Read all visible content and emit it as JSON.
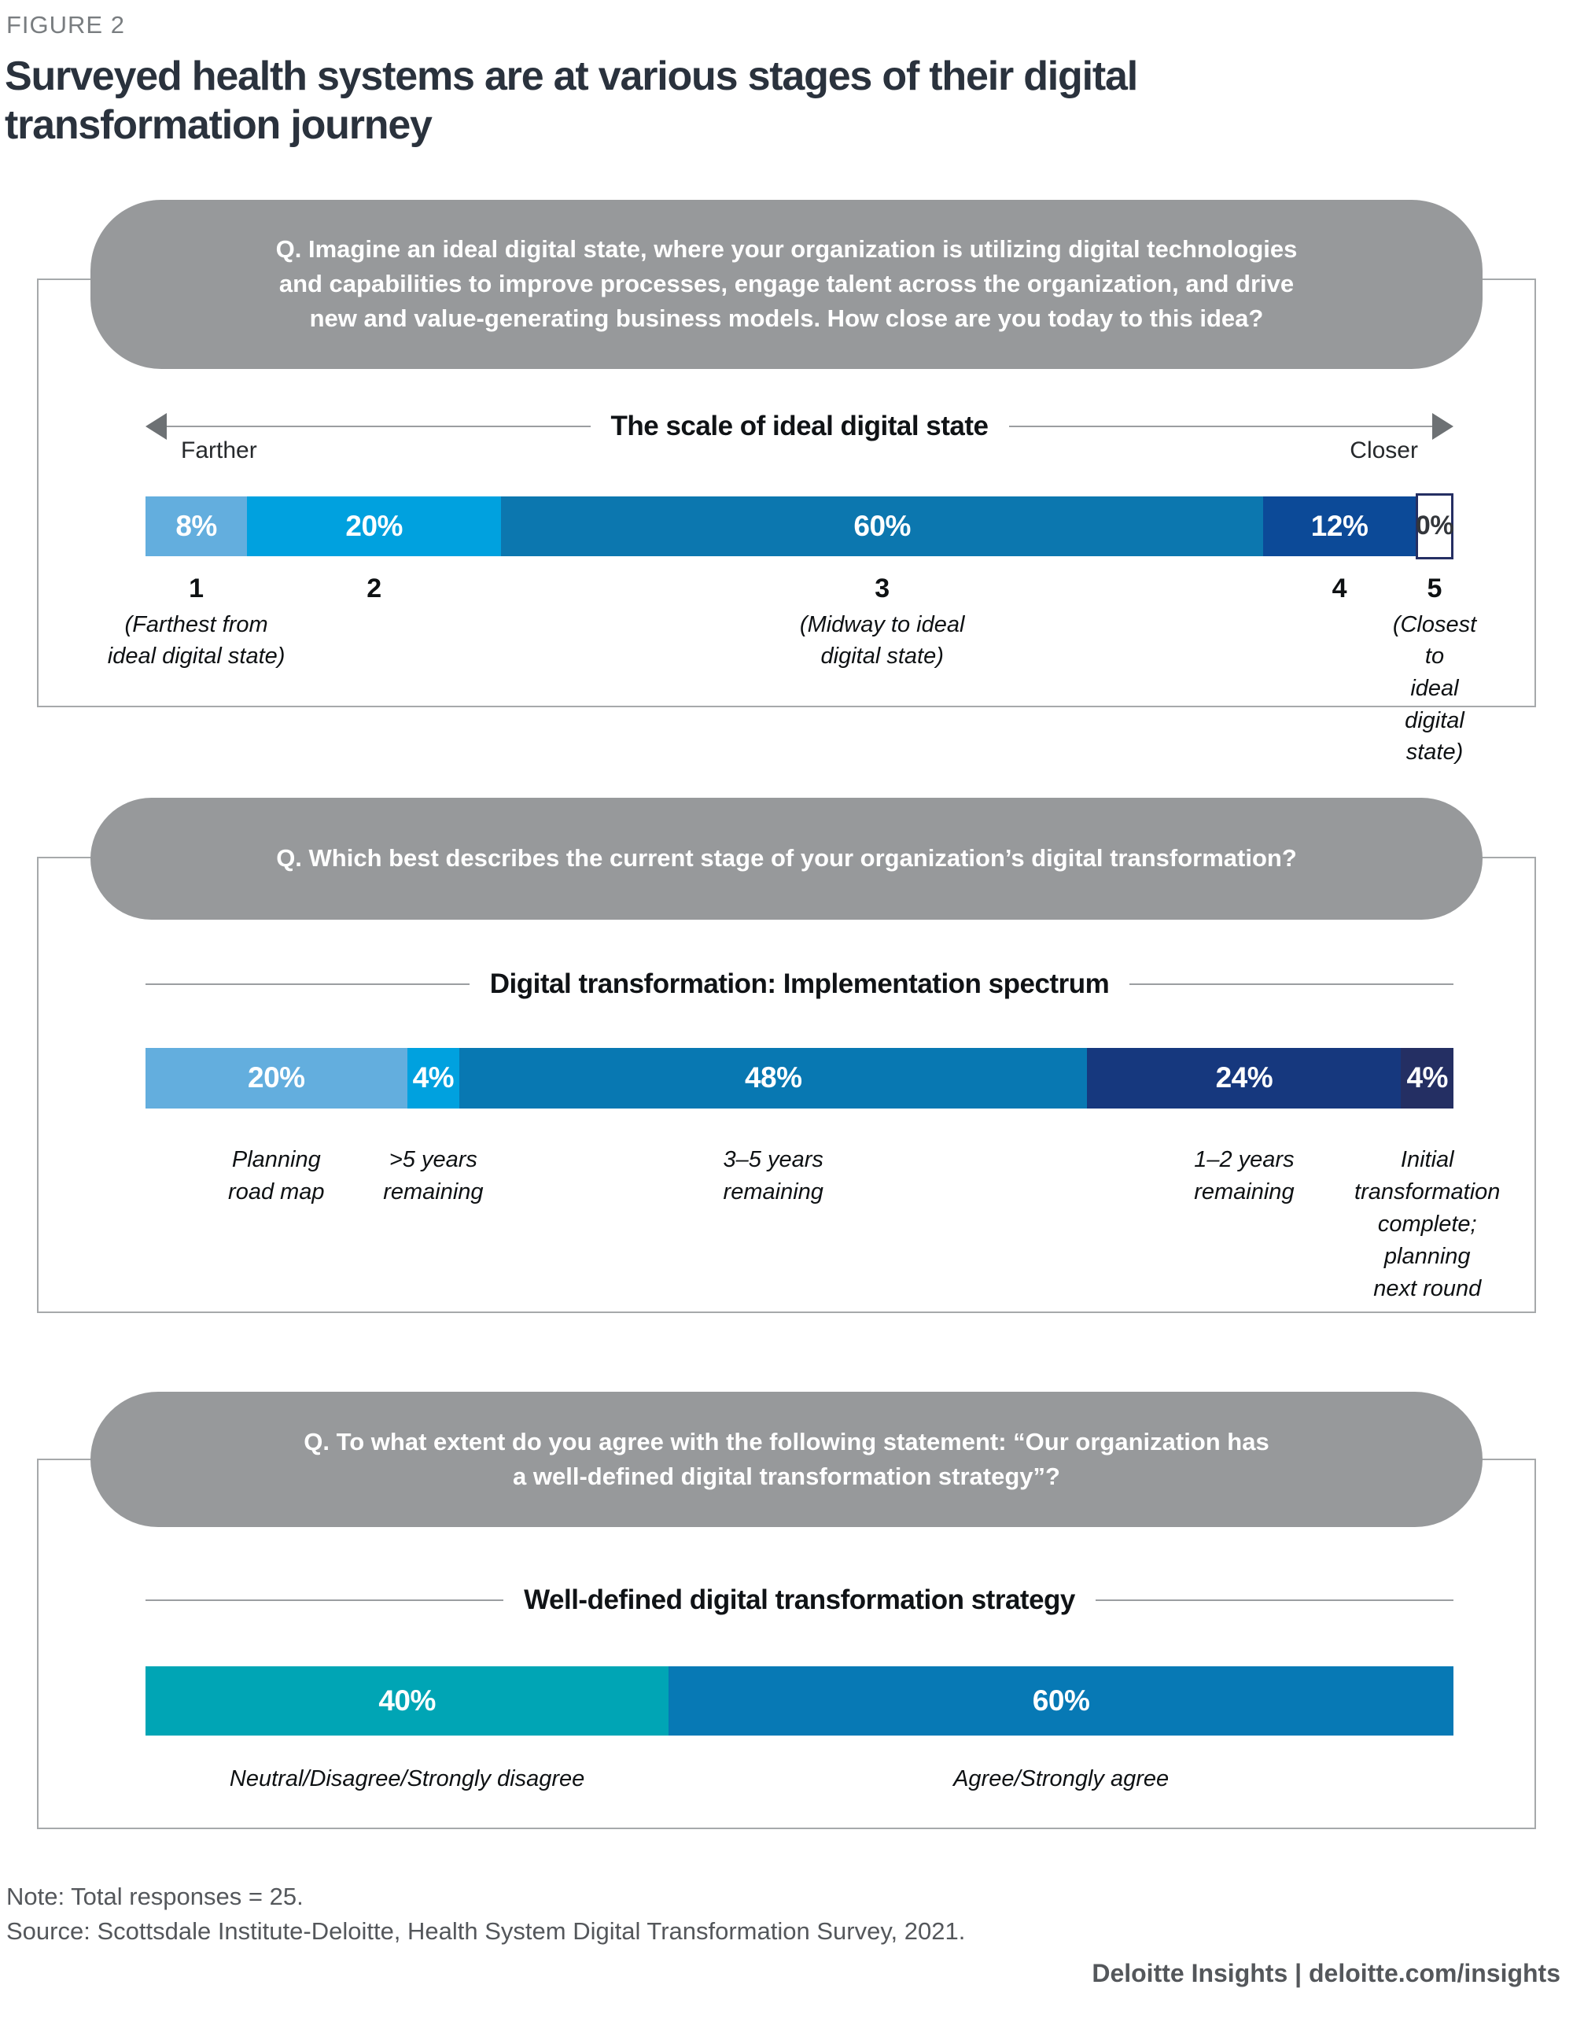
{
  "figure": {
    "label": "FIGURE 2",
    "title": "Surveyed health systems are at various stages of their digital\ntransformation journey"
  },
  "colors": {
    "title_text": "#2A323D",
    "bubble_bg": "#97999B",
    "box_border": "#A6A9AB",
    "line_gray": "#9B9EA1",
    "arrow_gray": "#6D7174",
    "zero_box_border": "#252F63",
    "zero_text": "#33363B",
    "footer_text": "#54575B",
    "light_blue": "#63AEDE",
    "bright_blue": "#00A1DF",
    "ocean_blue": "#0C77AF",
    "navy_blue": "#0C4A98",
    "dark_navy": "#16387E",
    "deep_navy": "#242F63",
    "teal": "#00A5B5"
  },
  "chart_data": [
    {
      "type": "bar",
      "stacked": true,
      "question": "Q. Imagine an ideal digital state, where your organization is utilizing digital technologies\nand capabilities to improve processes, engage talent across the organization, and drive\nnew and value-generating business models. How close are you today to this idea?",
      "title": "The scale of ideal digital state",
      "left_label": "Farther",
      "right_label": "Closer",
      "unit": "%",
      "values": [
        8,
        20,
        60,
        12,
        0
      ],
      "value_labels": [
        "8%",
        "20%",
        "60%",
        "12%",
        "0%"
      ],
      "ticks": [
        "1",
        "2",
        "3",
        "4",
        "5"
      ],
      "tick_captions": [
        "(Farthest from\nideal digital state)",
        "",
        "(Midway to ideal\ndigital state)",
        "",
        "(Closest to\nideal digital state)"
      ],
      "segment_colors": [
        "#63AEDE",
        "#00A1DF",
        "#0C77AF",
        "#0C4A98",
        "#FFFFFF"
      ]
    },
    {
      "type": "bar",
      "stacked": true,
      "question": "Q. Which best describes the current stage of your organization’s digital transformation?",
      "title": "Digital transformation: Implementation spectrum",
      "unit": "%",
      "values": [
        20,
        4,
        48,
        24,
        4
      ],
      "value_labels": [
        "20%",
        "4%",
        "48%",
        "24%",
        "4%"
      ],
      "categories": [
        "Planning\nroad map",
        ">5 years\nremaining",
        "3–5 years\nremaining",
        "1–2 years\nremaining",
        "Initial\ntransformation\ncomplete; planning\nnext round"
      ],
      "segment_colors": [
        "#63AEDE",
        "#00A1DF",
        "#0878B2",
        "#16387E",
        "#242F63"
      ]
    },
    {
      "type": "bar",
      "stacked": true,
      "question": "Q. To what extent do you agree with the following statement: “Our organization has\na well-defined digital transformation strategy”?",
      "title": "Well-defined digital transformation strategy",
      "unit": "%",
      "values": [
        40,
        60
      ],
      "value_labels": [
        "40%",
        "60%"
      ],
      "categories": [
        "Neutral/Disagree/Strongly disagree",
        "Agree/Strongly agree"
      ],
      "segment_colors": [
        "#00A5B5",
        "#0779B5"
      ]
    }
  ],
  "footer": {
    "note": "Note: Total responses = 25.",
    "source": "Source: Scottsdale Institute-Deloitte, Health System Digital Transformation Survey, 2021.",
    "brand": "Deloitte Insights",
    "separator": "|",
    "brand_suffix": "deloitte.com/insights"
  }
}
